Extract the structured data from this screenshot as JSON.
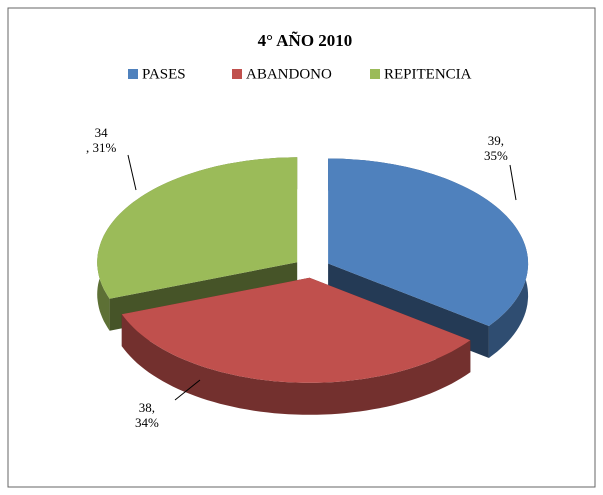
{
  "chart_data": {
    "type": "pie3d",
    "title": "4° AÑO 2010",
    "categories": [
      "PASES",
      "ABANDONO",
      "REPITENCIA"
    ],
    "values": [
      39,
      38,
      34
    ],
    "value_labels": [
      "39,\n35%",
      "38,\n34%",
      "34\n, 31%"
    ],
    "colors": [
      "#4f81bd",
      "#c0504d",
      "#9bbb59"
    ],
    "legend": "top"
  }
}
